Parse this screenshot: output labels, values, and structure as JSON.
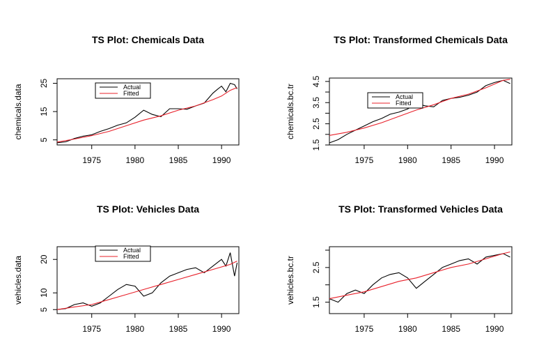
{
  "colors": {
    "actual": "#000000",
    "fitted": "#e8202a"
  },
  "chart_data": [
    {
      "type": "line",
      "title": "TS Plot: Chemicals Data",
      "xlabel": "",
      "ylabel": "chemicals.data",
      "xlim": [
        1971.0,
        1992.0
      ],
      "ylim": [
        3.2,
        26.6
      ],
      "xticks": [
        1975,
        1980,
        1985,
        1990
      ],
      "yticks": [
        5,
        15,
        25
      ],
      "legend_placement": "top-left",
      "series": [
        {
          "name": "Actual",
          "x": [
            1971.0,
            1972.0,
            1973.0,
            1974.0,
            1975.0,
            1976.0,
            1977.0,
            1978.0,
            1979.0,
            1980.0,
            1981.0,
            1982.0,
            1983.0,
            1984.0,
            1985.0,
            1986.0,
            1987.0,
            1988.0,
            1989.0,
            1989.5,
            1990.0,
            1990.5,
            1991.0,
            1991.5,
            1991.8
          ],
          "values": [
            4.0,
            4.3,
            5.5,
            6.3,
            6.8,
            8.0,
            9.0,
            10.2,
            11.0,
            13.0,
            15.5,
            14.0,
            13.2,
            16.0,
            16.0,
            15.8,
            17.0,
            18.0,
            21.5,
            22.8,
            24.0,
            22.0,
            25.0,
            24.5,
            23.0
          ]
        },
        {
          "name": "Fitted",
          "x": [
            1971.0,
            1973.0,
            1975.0,
            1977.0,
            1979.0,
            1981.0,
            1983.0,
            1985.0,
            1987.0,
            1989.0,
            1990.0,
            1991.0,
            1991.8
          ],
          "values": [
            4.2,
            5.3,
            6.5,
            8.0,
            10.0,
            12.0,
            13.5,
            15.5,
            17.0,
            19.2,
            20.5,
            22.5,
            23.5
          ]
        }
      ]
    },
    {
      "type": "line",
      "title": "TS Plot: Transformed Chemicals Data",
      "xlabel": "",
      "ylabel": "chemicals.bc.tr",
      "xlim": [
        1971.0,
        1992.0
      ],
      "ylim": [
        1.5,
        4.66
      ],
      "xticks": [
        1975,
        1980,
        1985,
        1990
      ],
      "yticks": [
        1.5,
        2.5,
        3.5,
        4.5
      ],
      "yticks_minor": [
        2.0,
        3.0,
        4.0
      ],
      "legend_placement": "top-left",
      "series": [
        {
          "name": "Actual",
          "x": [
            1971.0,
            1972.0,
            1973.0,
            1974.0,
            1975.0,
            1976.0,
            1977.0,
            1978.0,
            1979.0,
            1980.0,
            1981.0,
            1982.0,
            1983.0,
            1984.0,
            1985.0,
            1986.0,
            1987.0,
            1988.0,
            1989.0,
            1990.0,
            1991.0,
            1991.8
          ],
          "values": [
            1.6,
            1.75,
            2.0,
            2.2,
            2.4,
            2.6,
            2.75,
            2.95,
            3.05,
            3.2,
            3.45,
            3.35,
            3.3,
            3.6,
            3.7,
            3.75,
            3.85,
            4.0,
            4.3,
            4.45,
            4.55,
            4.4
          ]
        },
        {
          "name": "Fitted",
          "x": [
            1971.0,
            1973.0,
            1975.0,
            1977.0,
            1979.0,
            1981.0,
            1983.0,
            1985.0,
            1987.0,
            1989.0,
            1991.0,
            1991.8
          ],
          "values": [
            1.95,
            2.1,
            2.3,
            2.55,
            2.85,
            3.15,
            3.4,
            3.7,
            3.9,
            4.2,
            4.55,
            4.6
          ]
        }
      ]
    },
    {
      "type": "line",
      "title": "TS Plot: Vehicles Data",
      "xlabel": "",
      "ylabel": "vehicles.data",
      "xlim": [
        1971.0,
        1992.0
      ],
      "ylim": [
        3.8,
        23.8
      ],
      "xticks": [
        1975,
        1980,
        1985,
        1990
      ],
      "yticks": [
        5,
        10,
        20
      ],
      "legend_placement": "top-left",
      "series": [
        {
          "name": "Actual",
          "x": [
            1971.0,
            1972.0,
            1973.0,
            1974.0,
            1975.0,
            1976.0,
            1977.0,
            1978.0,
            1979.0,
            1980.0,
            1981.0,
            1982.0,
            1983.0,
            1984.0,
            1985.0,
            1986.0,
            1987.0,
            1988.0,
            1989.0,
            1990.0,
            1990.5,
            1991.0,
            1991.5,
            1991.8
          ],
          "values": [
            5.0,
            5.3,
            6.5,
            7.0,
            6.0,
            7.0,
            9.0,
            11.0,
            12.5,
            12.0,
            9.0,
            10.0,
            13.0,
            15.0,
            16.0,
            17.0,
            17.5,
            16.0,
            18.0,
            20.0,
            18.0,
            22.0,
            15.0,
            19.0
          ]
        },
        {
          "name": "Fitted",
          "x": [
            1971.0,
            1973.0,
            1975.0,
            1977.0,
            1979.0,
            1981.0,
            1983.0,
            1985.0,
            1987.0,
            1989.0,
            1991.0,
            1991.8
          ],
          "values": [
            5.0,
            5.8,
            6.5,
            8.0,
            9.5,
            11.0,
            12.5,
            14.0,
            15.5,
            17.0,
            18.5,
            19.5
          ]
        }
      ]
    },
    {
      "type": "line",
      "title": "TS Plot: Transformed Vehicles Data",
      "xlabel": "",
      "ylabel": "vehicles.bc.tr",
      "xlim": [
        1971.0,
        1992.0
      ],
      "ylim": [
        1.17,
        3.1
      ],
      "xticks": [
        1975,
        1980,
        1985,
        1990
      ],
      "yticks": [
        1.5,
        2.5
      ],
      "yticks_minor": [
        2.0,
        3.0
      ],
      "legend_placement": "none",
      "series": [
        {
          "name": "Actual",
          "x": [
            1971.0,
            1972.0,
            1973.0,
            1974.0,
            1975.0,
            1976.0,
            1977.0,
            1978.0,
            1979.0,
            1980.0,
            1981.0,
            1982.0,
            1983.0,
            1984.0,
            1985.0,
            1986.0,
            1987.0,
            1988.0,
            1989.0,
            1990.0,
            1991.0,
            1991.8
          ],
          "values": [
            1.6,
            1.5,
            1.75,
            1.85,
            1.75,
            2.0,
            2.2,
            2.3,
            2.35,
            2.2,
            1.9,
            2.1,
            2.3,
            2.5,
            2.6,
            2.7,
            2.75,
            2.6,
            2.8,
            2.85,
            2.9,
            2.8
          ]
        },
        {
          "name": "Fitted",
          "x": [
            1971.0,
            1973.0,
            1975.0,
            1977.0,
            1979.0,
            1981.0,
            1983.0,
            1985.0,
            1987.0,
            1989.0,
            1991.0,
            1991.8
          ],
          "values": [
            1.6,
            1.7,
            1.8,
            1.95,
            2.1,
            2.2,
            2.35,
            2.5,
            2.6,
            2.75,
            2.9,
            2.95
          ]
        }
      ]
    }
  ]
}
